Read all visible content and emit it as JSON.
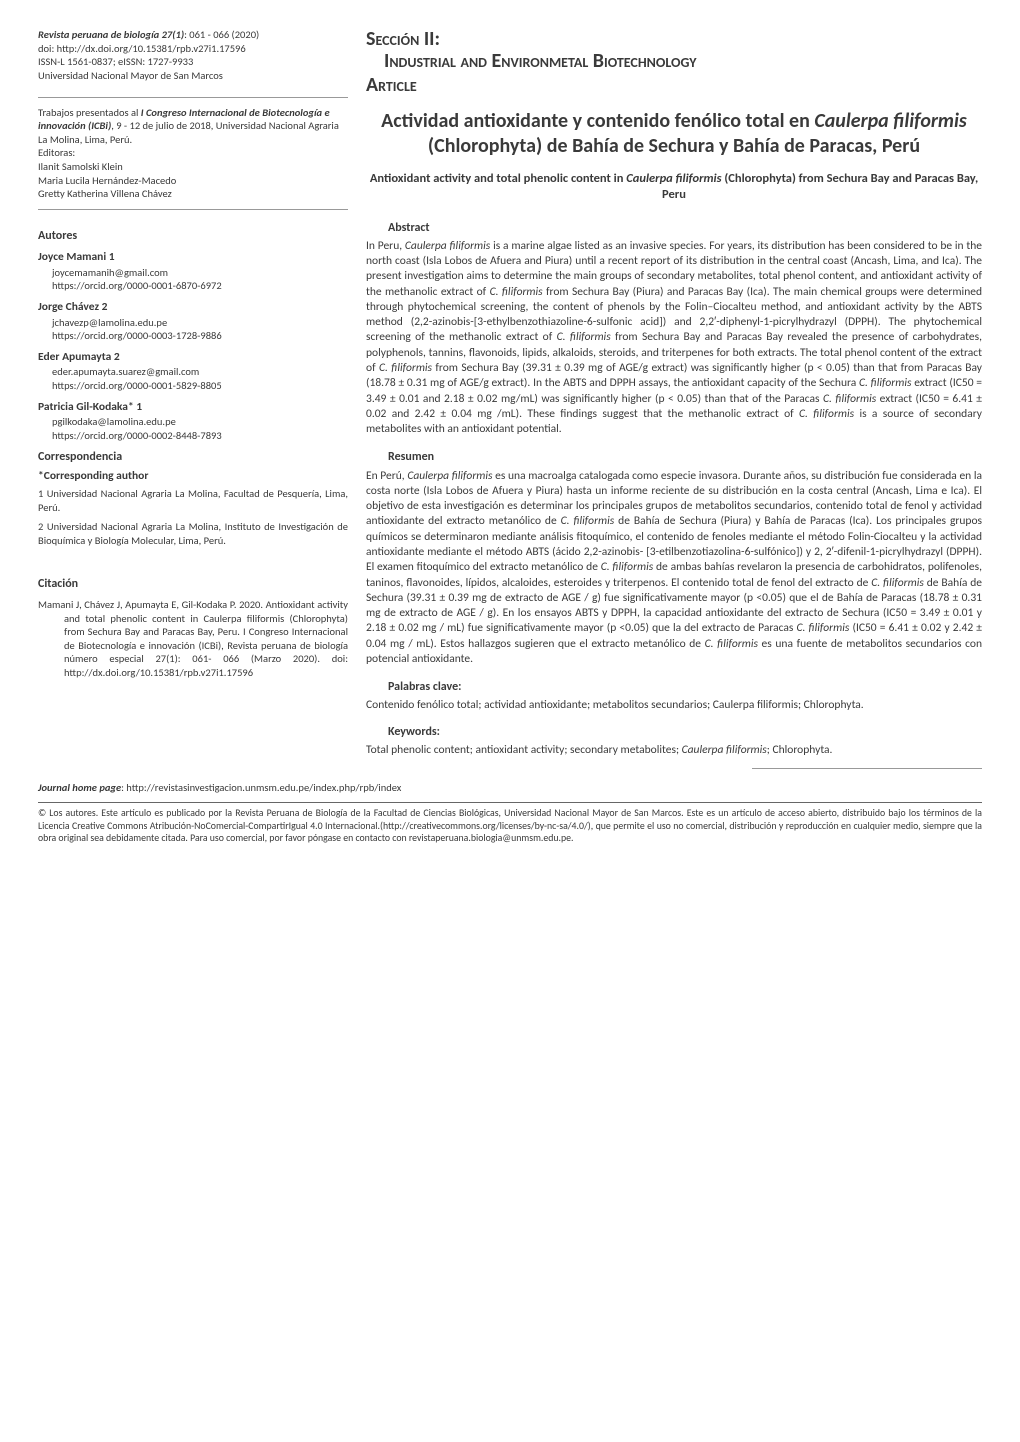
{
  "journal": {
    "title": "Revista peruana de biología 27(1)",
    "pages": ": 061 - 066 (2020)",
    "doi": "doi: http://dx.doi.org/10.15381/rpb.v27i1.17596",
    "issn": "ISSN-L 1561-0837; eISSN: 1727-9933",
    "publisher": "Universidad Nacional Mayor de San Marcos"
  },
  "proceedings": {
    "intro": "Trabajos presentados al ",
    "name": "I Congreso Internacional de Biotecnología e innovación (ICBi)",
    "details": ", 9 - 12 de julio de 2018, Universidad Nacional Agraria La Molina, Lima, Perú.",
    "editors_label": "Editoras:",
    "editors": [
      "Ilanit Samolski Klein",
      "Maria Lucila Hernández-Macedo",
      "Gretty Katherina Villena Chávez"
    ]
  },
  "autores_heading": "Autores",
  "authors": [
    {
      "name": "Joyce Mamani 1",
      "email": "joycemamanih@gmail.com",
      "orcid": "https://orcid.org/0000-0001-6870-6972"
    },
    {
      "name": "Jorge Chávez 2",
      "email": "jchavezp@lamolina.edu.pe",
      "orcid": "https://orcid.org/0000-0003-1728-9886"
    },
    {
      "name": "Eder Apumayta 2",
      "email": "eder.apumayta.suarez@gmail.com",
      "orcid": "https://orcid.org/0000-0001-5829-8805"
    },
    {
      "name": "Patricia Gil-Kodaka* 1",
      "email": "pgilkodaka@lamolina.edu.pe",
      "orcid": "https://orcid.org/0000-0002-8448-7893"
    }
  ],
  "correspondencia_heading": "Correspondencia",
  "corresponding_heading": "*Corresponding author",
  "affiliations": [
    "1 Universidad Nacional Agraria La Molina, Facultad de Pesquería, Lima, Perú.",
    "2 Universidad Nacional Agraria La Molina, Instituto de Investigación de Bioquímica y Biología Molecular, Lima, Perú."
  ],
  "citacion_heading": "Citación",
  "citation": "Mamani J, Chávez J, Apumayta E, Gil-Kodaka P. 2020. Antioxidant activity and total phenolic content in Caulerpa filiformis (Chlorophyta) from Sechura Bay and Paracas Bay, Peru. I Congreso Internacional de Biotecnología e innovación (ICBi), Revista peruana de biología número especial 27(1): 061- 066 (Marzo 2020). doi: http://dx.doi.org/10.15381/rpb.v27i1.17596",
  "section": {
    "label": "Sección II:",
    "line2": "Industrial and Environmetal Biotechnology",
    "article": "Article"
  },
  "title_es": {
    "pre": "Actividad antioxidante y contenido fenólico total en ",
    "sci": "Caulerpa filiformis",
    "post": " (Chlorophyta) de Bahía de Sechura y Bahía de Paracas, Perú"
  },
  "title_en": {
    "pre": "Antioxidant activity and total phenolic content in ",
    "sci": "Caulerpa filiformis",
    "post": " (Chlorophyta) from Sechura Bay and Paracas Bay, Peru"
  },
  "abstract_heading": "Abstract",
  "abstract_body": "In Peru, <i>Caulerpa filiformis</i> is a marine algae listed as an invasive species. For years, its distribution has been considered to be in the north coast (Isla Lobos de Afuera and Piura) until a recent report of its distribution in the central coast (Ancash, Lima, and Ica). The present investigation aims to determine the main groups of secondary metabolites, total phenol content, and antioxidant activity of the methanolic extract of <i>C. filiformis</i> from Sechura Bay (Piura) and Paracas Bay (Ica). The main chemical groups were determined through phytochemical screening, the content of phenols by the Folin–Ciocalteu method, and antioxidant activity by the ABTS method (2,2-azinobis-[3-ethylbenzothiazoline-6-sulfonic acid]) and 2,2′-diphenyl-1-picrylhydrazyl (DPPH). The phytochemical screening of the methanolic extract of <i>C. filiformis</i> from Sechura Bay and Paracas Bay revealed the presence of carbohydrates, polyphenols, tannins, flavonoids, lipids, alkaloids, steroids, and triterpenes for both extracts. The total phenol content of the extract of <i>C. filiformis</i> from Sechura Bay (39.31 ± 0.39 mg of AGE/g extract) was significantly higher (p < 0.05) than that from Paracas Bay (18.78 ± 0.31 mg of AGE/g extract). In the ABTS and DPPH assays, the antioxidant capacity of the Sechura <i>C. filiformis</i> extract (IC50 = 3.49 ± 0.01 and 2.18 ± 0.02 mg/mL) was significantly higher (p < 0.05) than that of the Paracas <i>C. filiformis</i> extract (IC50 = 6.41 ± 0.02 and 2.42 ± 0.04 mg /mL). These findings suggest that the methanolic extract of <i>C. filiformis</i> is a source of secondary metabolites with an antioxidant potential.",
  "resumen_heading": "Resumen",
  "resumen_body": "En Perú, <i>Caulerpa filiformis</i> es una macroalga catalogada como especie invasora. Durante años, su distribución fue considerada en la costa norte (Isla Lobos de Afuera y Piura) hasta un informe reciente de su distribución en la costa central (Ancash, Lima e Ica). El objetivo de esta investigación es determinar los principales grupos de metabolitos secundarios, contenido total de fenol y actividad antioxidante del extracto metanólico de <i>C. filiformis</i> de Bahía de Sechura (Piura) y Bahía de Paracas (Ica). Los principales grupos químicos se determinaron mediante análisis fitoquímico, el contenido de fenoles mediante el método Folin-Ciocalteu y la actividad antioxidante mediante el método ABTS (ácido 2,2-azinobis- [3-etilbenzotiazolina-6-sulfónico]) y 2, 2′-difenil-1-picrylhydrazyl (DPPH). El examen fitoquímico del extracto metanólico de <i>C. filiformis</i> de ambas bahías revelaron la presencia de carbohidratos, polifenoles, taninos, flavonoides, lípidos, alcaloides, esteroides y triterpenos. El contenido total de fenol del extracto de <i>C. filiformis</i> de Bahía de Sechura (39.31 ± 0.39 mg de extracto de AGE / g) fue significativamente mayor (p <0.05) que el de Bahía de Paracas (18.78 ± 0.31 mg de extracto de AGE / g). En los ensayos ABTS y DPPH, la capacidad antioxidante del extracto de Sechura (IC50 = 3.49 ± 0.01 y 2.18 ± 0.02 mg / mL) fue significativamente mayor (p <0.05) que la del extracto de Paracas <i>C. filiformis</i> (IC50 = 6.41 ± 0.02 y 2.42 ± 0.04 mg / mL). Estos hallazgos sugieren que el extracto metanólico de <i>C. filiformis</i> es una fuente de metabolitos secundarios con potencial antioxidante.",
  "palabras_heading": "Palabras clave:",
  "palabras_body": "Contenido fenólico total; actividad antioxidante; metabolitos secundarios; Caulerpa filiformis; Chlorophyta.",
  "keywords_heading": "Keywords:",
  "keywords_body": "Total phenolic content; antioxidant activity; secondary metabolites; <i>Caulerpa filiformis</i>; Chlorophyta.",
  "footer": {
    "homepage_label": "Journal home page",
    "homepage_url": ": http://revistasinvestigacion.unmsm.edu.pe/index.php/rpb/index",
    "license": "© Los autores. Este artículo es publicado por la Revista Peruana de Biología de la Facultad de Ciencias Biológicas, Universidad Nacional Mayor de San Marcos. Este es un artículo de acceso abierto, distribuido bajo los términos de la  Licencia Creative Commons Atribución-NoComercial-CompartirIgual 4.0 Internacional.(http://creativecommons.org/licenses/by-nc-sa/4.0/), que permite el uso no comercial, distribución y reproducción en cualquier medio, siempre que la obra original sea debidamente citada. Para uso comercial, por favor póngase en contacto con revistaperuana.biologia@unmsm.edu.pe."
  }
}
